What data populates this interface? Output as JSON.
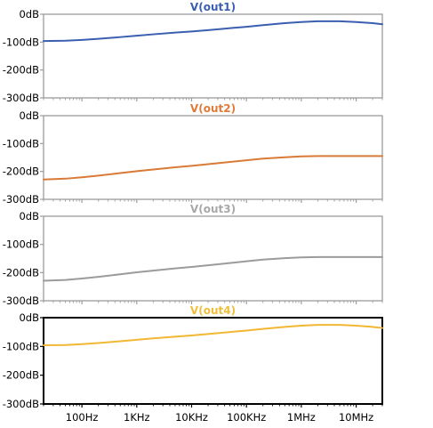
{
  "chart_data": [
    {
      "type": "line",
      "title": "V(out1)",
      "title_color": "#3a5fb0",
      "line_color": "#3a5fb0",
      "frame_color": "#9c9c9c",
      "frame_bold": false,
      "show_x_ticks": false,
      "y_tick_labels": [
        "0dB",
        "-100dB",
        "-200dB",
        "-300dB"
      ],
      "ylim": [
        -300,
        0
      ],
      "x_scale": "log",
      "xlim": [
        20,
        30000000
      ],
      "x": [
        20,
        50,
        100,
        200,
        500,
        1000,
        2000,
        5000,
        10000,
        20000,
        50000,
        100000,
        200000,
        500000,
        1000000,
        2000000,
        5000000,
        10000000,
        20000000,
        30000000
      ],
      "y": [
        -96,
        -95,
        -92,
        -88,
        -82,
        -77,
        -72,
        -66,
        -62,
        -57,
        -50,
        -45,
        -39,
        -32,
        -28,
        -25,
        -25,
        -28,
        -32,
        -36
      ]
    },
    {
      "type": "line",
      "title": "V(out2)",
      "title_color": "#e07b39",
      "line_color": "#d97a36",
      "frame_color": "#9c9c9c",
      "frame_bold": false,
      "show_x_ticks": false,
      "y_tick_labels": [
        "0dB",
        "-100dB",
        "-200dB",
        "-300dB"
      ],
      "ylim": [
        -300,
        0
      ],
      "x_scale": "log",
      "xlim": [
        20,
        30000000
      ],
      "x": [
        20,
        50,
        100,
        200,
        500,
        1000,
        2000,
        5000,
        10000,
        20000,
        50000,
        100000,
        200000,
        500000,
        1000000,
        2000000,
        5000000,
        10000000,
        20000000,
        30000000
      ],
      "y": [
        -229,
        -226,
        -221,
        -215,
        -206,
        -199,
        -193,
        -185,
        -180,
        -174,
        -166,
        -160,
        -154,
        -149,
        -146,
        -145,
        -145,
        -145,
        -145,
        -145
      ]
    },
    {
      "type": "line",
      "title": "V(out3)",
      "title_color": "#a8a8a8",
      "line_color": "#9b9b9b",
      "frame_color": "#9c9c9c",
      "frame_bold": false,
      "show_x_ticks": false,
      "y_tick_labels": [
        "0dB",
        "-100dB",
        "-200dB",
        "-300dB"
      ],
      "ylim": [
        -300,
        0
      ],
      "x_scale": "log",
      "xlim": [
        20,
        30000000
      ],
      "x": [
        20,
        50,
        100,
        200,
        500,
        1000,
        2000,
        5000,
        10000,
        20000,
        50000,
        100000,
        200000,
        500000,
        1000000,
        2000000,
        5000000,
        10000000,
        20000000,
        30000000
      ],
      "y": [
        -229,
        -226,
        -221,
        -215,
        -206,
        -199,
        -193,
        -185,
        -180,
        -174,
        -166,
        -160,
        -154,
        -149,
        -146,
        -145,
        -145,
        -145,
        -145,
        -145
      ]
    },
    {
      "type": "line",
      "title": "V(out4)",
      "title_color": "#f2be3a",
      "line_color": "#f2b733",
      "frame_color": "#000000",
      "frame_bold": true,
      "show_x_ticks": true,
      "y_tick_labels": [
        "0dB",
        "-100dB",
        "-200dB",
        "-300dB"
      ],
      "ylim": [
        -300,
        0
      ],
      "x_scale": "log",
      "xlim": [
        20,
        30000000
      ],
      "x_ticks": [
        100,
        1000,
        10000,
        100000,
        1000000,
        10000000
      ],
      "x_tick_labels": [
        "100Hz",
        "1KHz",
        "10KHz",
        "100KHz",
        "1MHz",
        "10MHz"
      ],
      "x": [
        20,
        50,
        100,
        200,
        500,
        1000,
        2000,
        5000,
        10000,
        20000,
        50000,
        100000,
        200000,
        500000,
        1000000,
        2000000,
        5000000,
        10000000,
        20000000,
        30000000
      ],
      "y": [
        -96,
        -95,
        -92,
        -88,
        -82,
        -77,
        -72,
        -66,
        -62,
        -57,
        -50,
        -45,
        -39,
        -32,
        -28,
        -25,
        -25,
        -28,
        -32,
        -36
      ]
    }
  ]
}
